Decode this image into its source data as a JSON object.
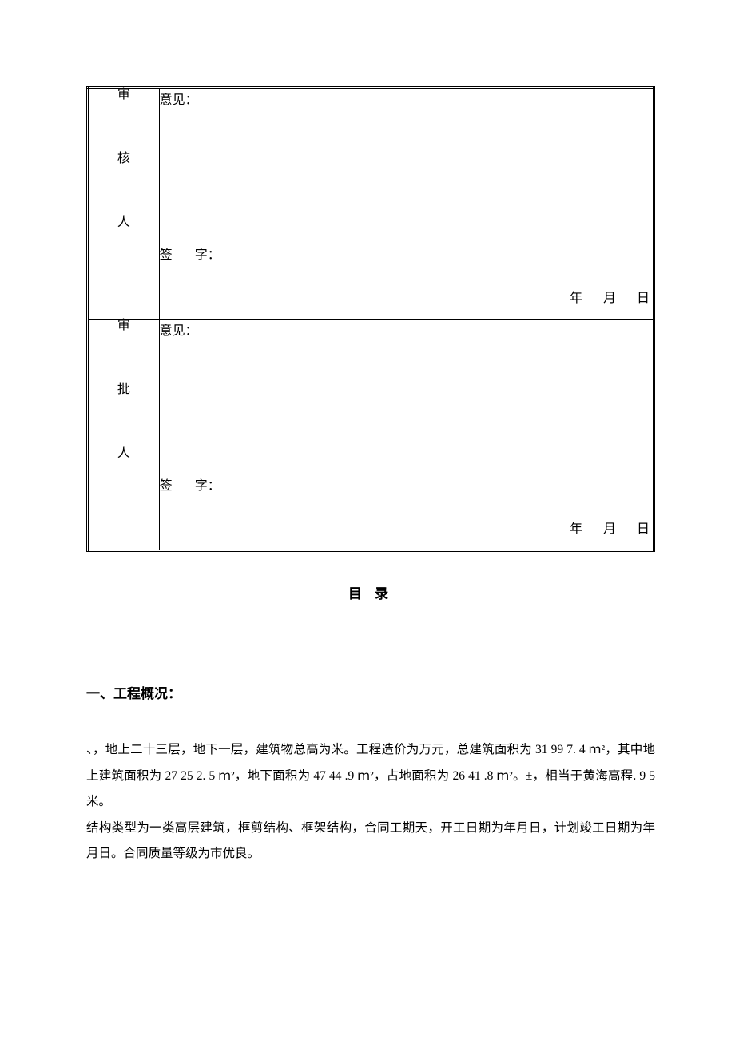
{
  "table": {
    "row1": {
      "left_chars": [
        "审",
        "核",
        "人"
      ],
      "opinion_label": "意见：",
      "sign_label_a": "签",
      "sign_label_b": "字：",
      "date_y": "年",
      "date_m": "月",
      "date_d": "日"
    },
    "row2": {
      "left_chars": [
        "审",
        "批",
        "人"
      ],
      "opinion_label": "意见：",
      "sign_label_a": "签",
      "sign_label_b": "字：",
      "date_y": "年",
      "date_m": "月",
      "date_d": "日"
    }
  },
  "toc_title": "目 录",
  "section1": {
    "heading": "一、工程概况：",
    "para1": "、，地上二十三层，地下一层，建筑物总高为米。工程造价为万元，总建筑面积为 31 99 7. 4 ｍ²，其中地上建筑面积为 27 25 2. 5 ｍ²，地下面积为 47 44 .9 ｍ²，占地面积为 26 41 .8 ｍ²。±，相当于黄海高程. 9 5 米。",
    "para2": "结构类型为一类高层建筑，框剪结构、框架结构，合同工期天，开工日期为年月日，计划竣工日期为年月日。合同质量等级为市优良。"
  },
  "colors": {
    "text": "#000000",
    "background": "#ffffff",
    "border": "#000000"
  },
  "fonts": {
    "body_family": "SimSun",
    "body_size_pt": 12,
    "heading_bold": true
  }
}
